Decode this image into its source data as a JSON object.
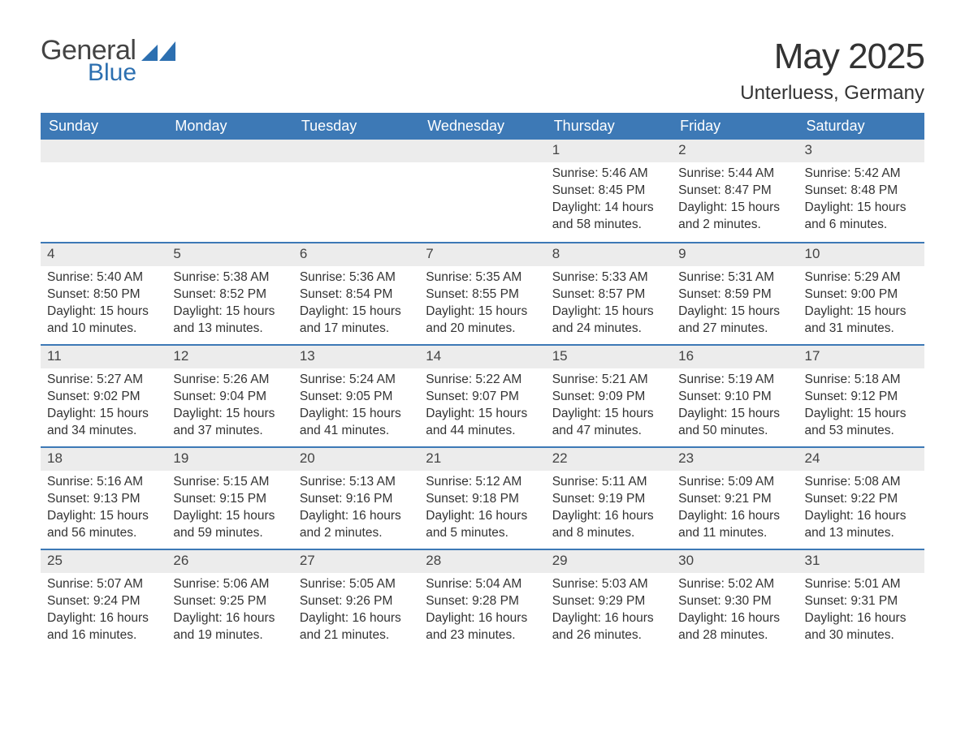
{
  "brand": {
    "general": "General",
    "blue": "Blue",
    "accent": "#2c6fb0"
  },
  "title": "May 2025",
  "location": "Unterluess, Germany",
  "colors": {
    "header_bg": "#3d79b6",
    "header_text": "#ffffff",
    "daynum_bg": "#ececec",
    "row_border": "#3d79b6",
    "text": "#333333",
    "background": "#ffffff"
  },
  "weekdays": [
    "Sunday",
    "Monday",
    "Tuesday",
    "Wednesday",
    "Thursday",
    "Friday",
    "Saturday"
  ],
  "weeks": [
    [
      null,
      null,
      null,
      null,
      {
        "n": "1",
        "sr": "5:46 AM",
        "ss": "8:45 PM",
        "dl": "14 hours and 58 minutes."
      },
      {
        "n": "2",
        "sr": "5:44 AM",
        "ss": "8:47 PM",
        "dl": "15 hours and 2 minutes."
      },
      {
        "n": "3",
        "sr": "5:42 AM",
        "ss": "8:48 PM",
        "dl": "15 hours and 6 minutes."
      }
    ],
    [
      {
        "n": "4",
        "sr": "5:40 AM",
        "ss": "8:50 PM",
        "dl": "15 hours and 10 minutes."
      },
      {
        "n": "5",
        "sr": "5:38 AM",
        "ss": "8:52 PM",
        "dl": "15 hours and 13 minutes."
      },
      {
        "n": "6",
        "sr": "5:36 AM",
        "ss": "8:54 PM",
        "dl": "15 hours and 17 minutes."
      },
      {
        "n": "7",
        "sr": "5:35 AM",
        "ss": "8:55 PM",
        "dl": "15 hours and 20 minutes."
      },
      {
        "n": "8",
        "sr": "5:33 AM",
        "ss": "8:57 PM",
        "dl": "15 hours and 24 minutes."
      },
      {
        "n": "9",
        "sr": "5:31 AM",
        "ss": "8:59 PM",
        "dl": "15 hours and 27 minutes."
      },
      {
        "n": "10",
        "sr": "5:29 AM",
        "ss": "9:00 PM",
        "dl": "15 hours and 31 minutes."
      }
    ],
    [
      {
        "n": "11",
        "sr": "5:27 AM",
        "ss": "9:02 PM",
        "dl": "15 hours and 34 minutes."
      },
      {
        "n": "12",
        "sr": "5:26 AM",
        "ss": "9:04 PM",
        "dl": "15 hours and 37 minutes."
      },
      {
        "n": "13",
        "sr": "5:24 AM",
        "ss": "9:05 PM",
        "dl": "15 hours and 41 minutes."
      },
      {
        "n": "14",
        "sr": "5:22 AM",
        "ss": "9:07 PM",
        "dl": "15 hours and 44 minutes."
      },
      {
        "n": "15",
        "sr": "5:21 AM",
        "ss": "9:09 PM",
        "dl": "15 hours and 47 minutes."
      },
      {
        "n": "16",
        "sr": "5:19 AM",
        "ss": "9:10 PM",
        "dl": "15 hours and 50 minutes."
      },
      {
        "n": "17",
        "sr": "5:18 AM",
        "ss": "9:12 PM",
        "dl": "15 hours and 53 minutes."
      }
    ],
    [
      {
        "n": "18",
        "sr": "5:16 AM",
        "ss": "9:13 PM",
        "dl": "15 hours and 56 minutes."
      },
      {
        "n": "19",
        "sr": "5:15 AM",
        "ss": "9:15 PM",
        "dl": "15 hours and 59 minutes."
      },
      {
        "n": "20",
        "sr": "5:13 AM",
        "ss": "9:16 PM",
        "dl": "16 hours and 2 minutes."
      },
      {
        "n": "21",
        "sr": "5:12 AM",
        "ss": "9:18 PM",
        "dl": "16 hours and 5 minutes."
      },
      {
        "n": "22",
        "sr": "5:11 AM",
        "ss": "9:19 PM",
        "dl": "16 hours and 8 minutes."
      },
      {
        "n": "23",
        "sr": "5:09 AM",
        "ss": "9:21 PM",
        "dl": "16 hours and 11 minutes."
      },
      {
        "n": "24",
        "sr": "5:08 AM",
        "ss": "9:22 PM",
        "dl": "16 hours and 13 minutes."
      }
    ],
    [
      {
        "n": "25",
        "sr": "5:07 AM",
        "ss": "9:24 PM",
        "dl": "16 hours and 16 minutes."
      },
      {
        "n": "26",
        "sr": "5:06 AM",
        "ss": "9:25 PM",
        "dl": "16 hours and 19 minutes."
      },
      {
        "n": "27",
        "sr": "5:05 AM",
        "ss": "9:26 PM",
        "dl": "16 hours and 21 minutes."
      },
      {
        "n": "28",
        "sr": "5:04 AM",
        "ss": "9:28 PM",
        "dl": "16 hours and 23 minutes."
      },
      {
        "n": "29",
        "sr": "5:03 AM",
        "ss": "9:29 PM",
        "dl": "16 hours and 26 minutes."
      },
      {
        "n": "30",
        "sr": "5:02 AM",
        "ss": "9:30 PM",
        "dl": "16 hours and 28 minutes."
      },
      {
        "n": "31",
        "sr": "5:01 AM",
        "ss": "9:31 PM",
        "dl": "16 hours and 30 minutes."
      }
    ]
  ],
  "labels": {
    "sunrise": "Sunrise: ",
    "sunset": "Sunset: ",
    "daylight": "Daylight: "
  }
}
